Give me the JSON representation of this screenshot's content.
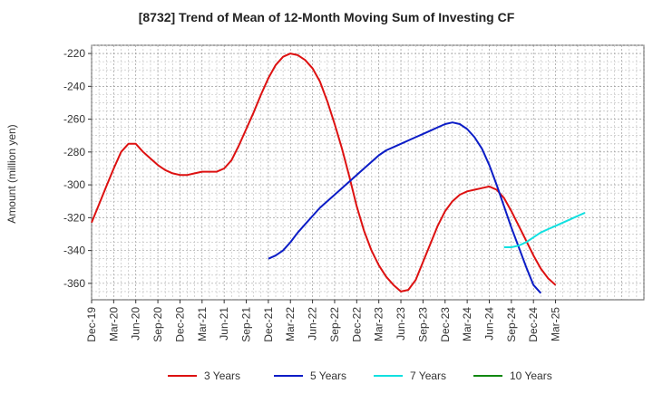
{
  "chart_data": {
    "type": "line",
    "title": "[8732]  Trend of Mean of 12-Month Moving Sum of Investing CF",
    "xlabel": "",
    "ylabel": "Amount (million yen)",
    "ylim": [
      -370,
      -215
    ],
    "yticks": [
      -220,
      -240,
      -260,
      -280,
      -300,
      -320,
      -340,
      -360
    ],
    "xlim": [
      0,
      75
    ],
    "x_tick_labels": [
      "Dec-19",
      "Mar-20",
      "Jun-20",
      "Sep-20",
      "Dec-20",
      "Mar-21",
      "Jun-21",
      "Sep-21",
      "Dec-21",
      "Mar-22",
      "Jun-22",
      "Sep-22",
      "Dec-22",
      "Mar-23",
      "Jun-23",
      "Sep-23",
      "Dec-23",
      "Mar-24",
      "Jun-24",
      "Sep-24",
      "Dec-24",
      "Mar-25"
    ],
    "grid": true,
    "legend_position": "bottom",
    "series": [
      {
        "name": "3 Years",
        "color": "#dd1111",
        "x_start": 0,
        "values": [
          -323,
          -312,
          -301,
          -290,
          -280,
          -275,
          -275,
          -280,
          -284,
          -288,
          -291,
          -293,
          -294,
          -294,
          -293,
          -292,
          -292,
          -292,
          -290,
          -285,
          -276,
          -266,
          -256,
          -245,
          -235,
          -227,
          -222,
          -220,
          -221,
          -224,
          -229,
          -237,
          -249,
          -263,
          -278,
          -295,
          -313,
          -328,
          -340,
          -349,
          -356,
          -361,
          -365,
          -364,
          -358,
          -347,
          -336,
          -325,
          -316,
          -310,
          -306,
          -304,
          -303,
          -302,
          -301,
          -303,
          -308,
          -316,
          -325,
          -334,
          -343,
          -351,
          -357,
          -361
        ]
      },
      {
        "name": "5 Years",
        "color": "#0b1cc6",
        "x_start": 24,
        "values": [
          -345,
          -343,
          -340,
          -335,
          -329,
          -324,
          -319,
          -314,
          -310,
          -306,
          -302,
          -298,
          -294,
          -290,
          -286,
          -282,
          -279,
          -277,
          -275,
          -273,
          -271,
          -269,
          -267,
          -265,
          -263,
          -262,
          -263,
          -266,
          -271,
          -278,
          -288,
          -300,
          -313,
          -326,
          -338,
          -350,
          -361,
          -366
        ]
      },
      {
        "name": "7 Years",
        "color": "#11e0e0",
        "x_start": 56,
        "values": [
          -338,
          -338,
          -337,
          -335,
          -332,
          -329,
          -327,
          -325,
          -323,
          -321,
          -319,
          -317
        ]
      },
      {
        "name": "10 Years",
        "color": "#118811",
        "x_start": 0,
        "values": []
      }
    ]
  }
}
